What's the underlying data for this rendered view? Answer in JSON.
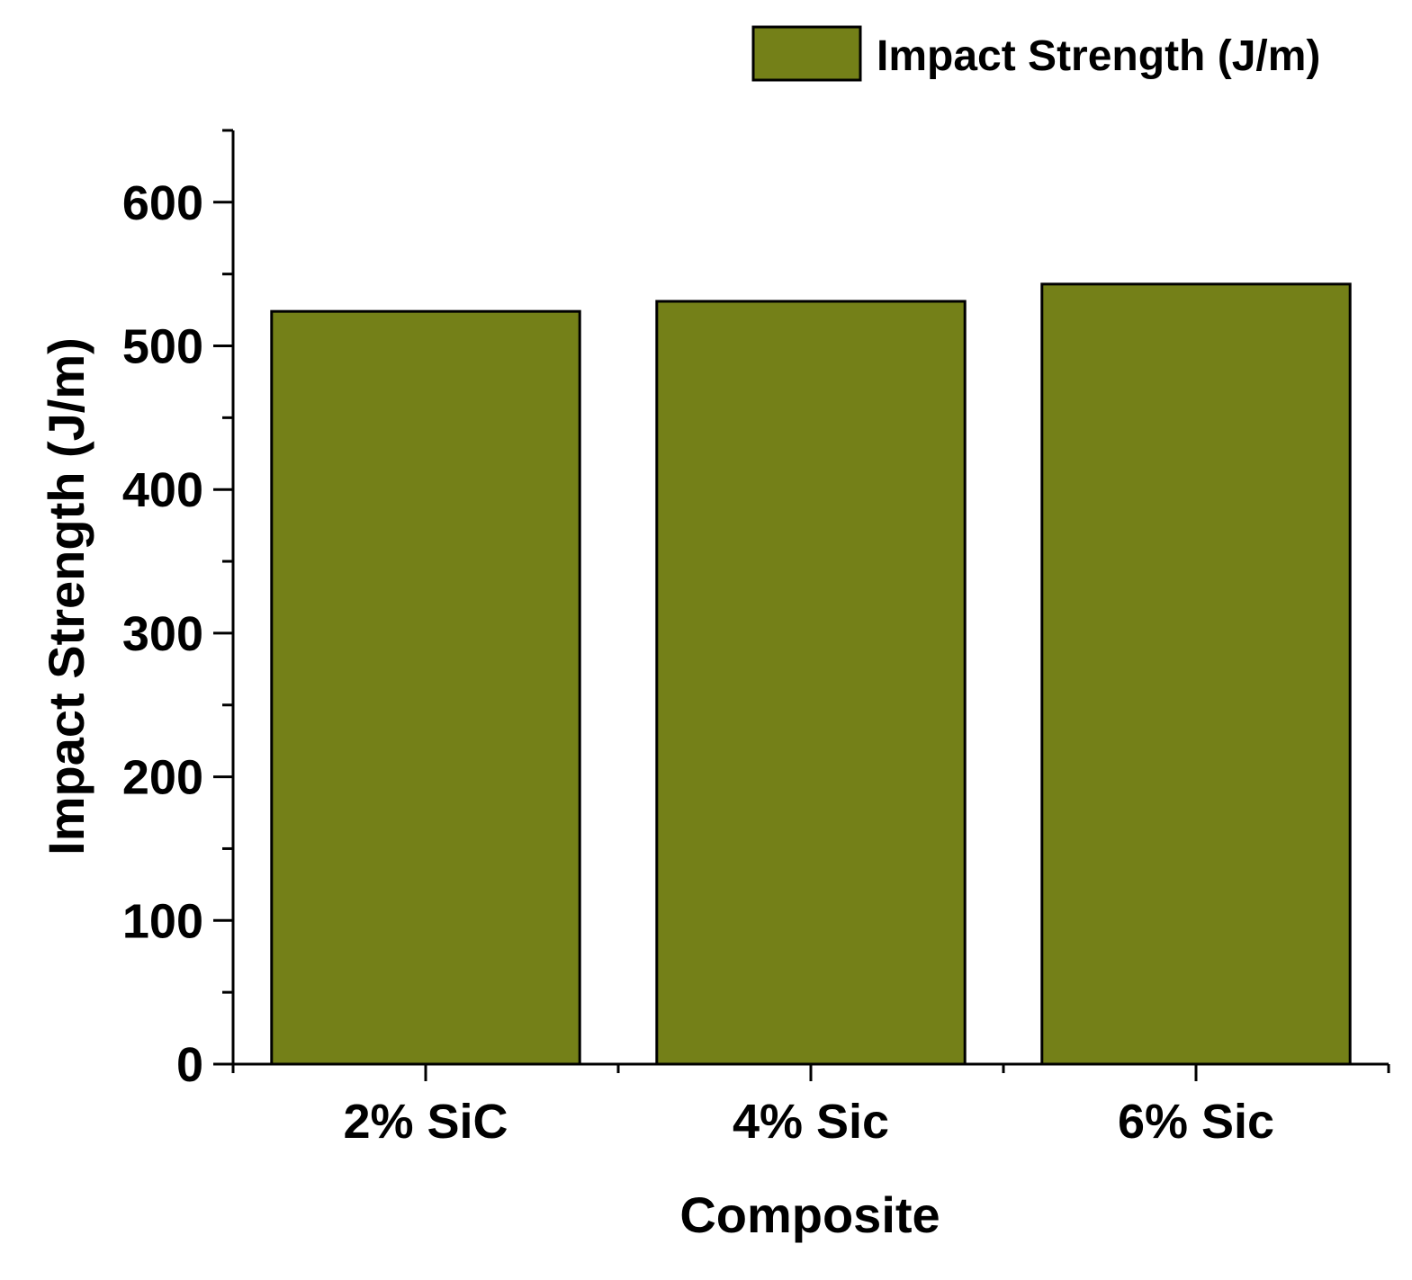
{
  "chart_data": {
    "type": "bar",
    "categories": [
      "2% SiC",
      "4% Sic",
      "6% Sic"
    ],
    "series": [
      {
        "name": "Impact Strength (J/m)",
        "values": [
          524,
          531,
          543
        ]
      }
    ],
    "title": "",
    "xlabel": "Composite",
    "ylabel": "Impact Strength (J/m)",
    "ylim": [
      0,
      650
    ],
    "yticks": [
      0,
      100,
      200,
      300,
      400,
      500,
      600
    ],
    "grid": false,
    "legend_position": "top-right",
    "colors": {
      "bar_fill": "#748018",
      "bar_edge": "#000000",
      "axis": "#000000"
    }
  }
}
